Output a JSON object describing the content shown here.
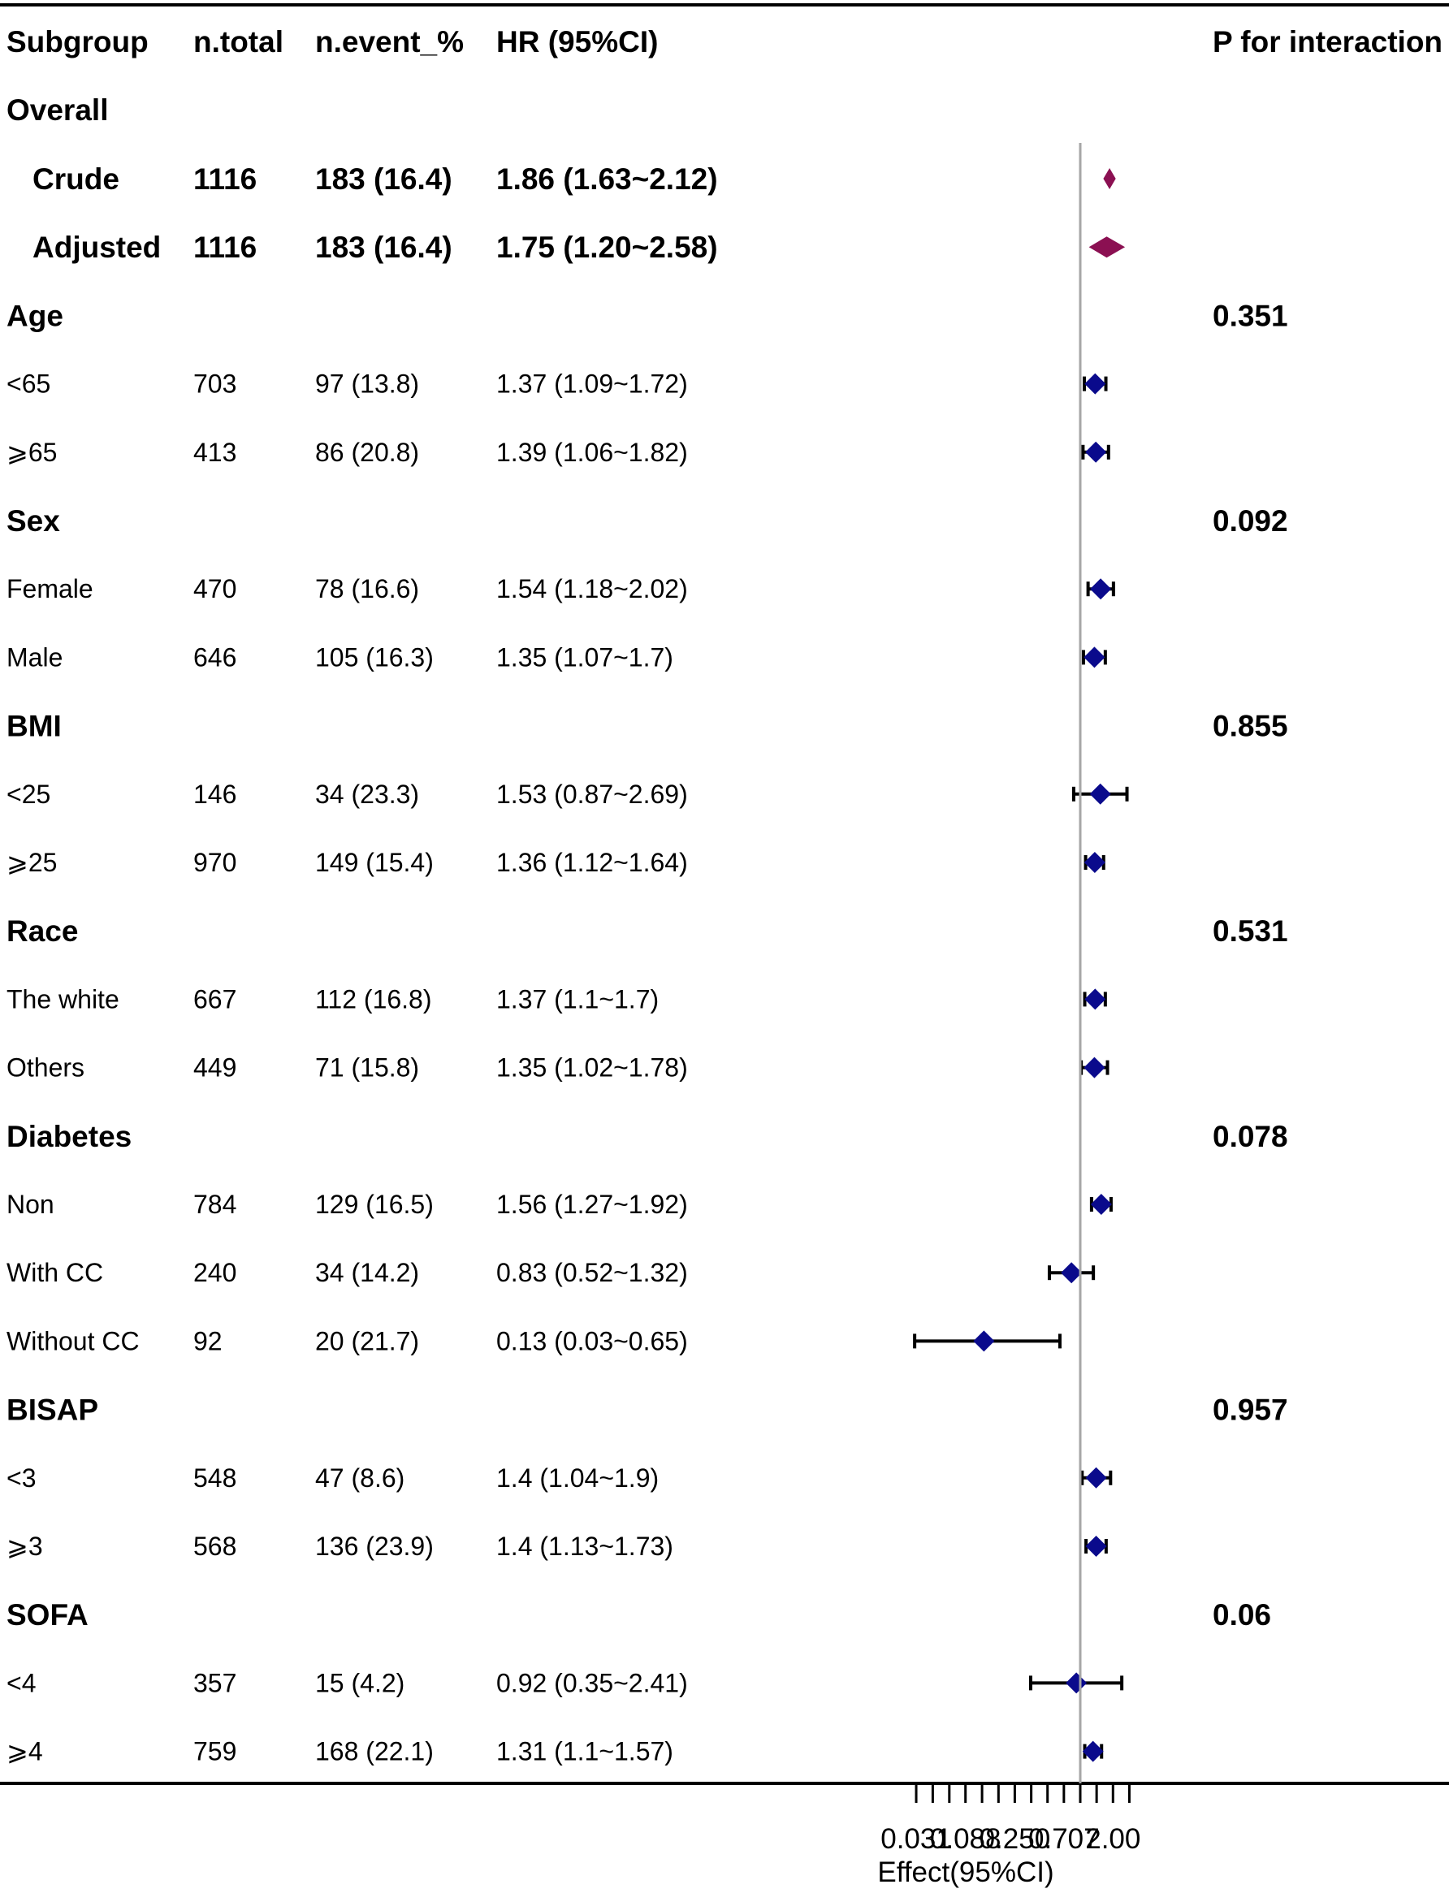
{
  "chart_data": {
    "type": "forest",
    "title": "",
    "xlabel": "Effect(95%CI)",
    "x_scale": "log2",
    "reference_value": 1,
    "xlim": [
      0.021,
      2.83
    ],
    "x_ticks": [
      0.031,
      0.088,
      0.25,
      0.707,
      2.0
    ],
    "x_tick_labels": [
      "0.031",
      "0.088",
      "0.250",
      "0.707",
      "2.00"
    ],
    "x_minor_ticks": [
      0.044,
      0.0625,
      0.125,
      0.177,
      0.354,
      0.5,
      1.0,
      1.414,
      2.828
    ],
    "columns": {
      "subgroup": "Subgroup",
      "n_total": "n.total",
      "n_event": "n.event_%",
      "hr": "HR (95%CI)",
      "p_interaction": "P for interaction"
    },
    "overall_label": "Overall",
    "overall": [
      {
        "label": "Crude",
        "n_total": "1116",
        "n_event": "183 (16.4)",
        "hr_text": "1.86 (1.63~2.12)",
        "hr": 1.86,
        "lower": 1.63,
        "upper": 2.12
      },
      {
        "label": "Adjusted",
        "n_total": "1116",
        "n_event": "183 (16.4)",
        "hr_text": "1.75 (1.20~2.58)",
        "hr": 1.75,
        "lower": 1.2,
        "upper": 2.58
      }
    ],
    "groups": [
      {
        "name": "Age",
        "p": "0.351",
        "rows": [
          {
            "label": "<65",
            "n_total": "703",
            "n_event": "97 (13.8)",
            "hr_text": "1.37 (1.09~1.72)",
            "hr": 1.37,
            "lower": 1.09,
            "upper": 1.72
          },
          {
            "label": "⩾65",
            "n_total": "413",
            "n_event": "86 (20.8)",
            "hr_text": "1.39 (1.06~1.82)",
            "hr": 1.39,
            "lower": 1.06,
            "upper": 1.82
          }
        ]
      },
      {
        "name": "Sex",
        "p": "0.092",
        "rows": [
          {
            "label": "Female",
            "n_total": "470",
            "n_event": "78 (16.6)",
            "hr_text": "1.54 (1.18~2.02)",
            "hr": 1.54,
            "lower": 1.18,
            "upper": 2.02
          },
          {
            "label": "Male",
            "n_total": "646",
            "n_event": "105 (16.3)",
            "hr_text": "1.35 (1.07~1.7)",
            "hr": 1.35,
            "lower": 1.07,
            "upper": 1.7
          }
        ]
      },
      {
        "name": "BMI",
        "p": "0.855",
        "rows": [
          {
            "label": "<25",
            "n_total": "146",
            "n_event": "34 (23.3)",
            "hr_text": "1.53 (0.87~2.69)",
            "hr": 1.53,
            "lower": 0.87,
            "upper": 2.69
          },
          {
            "label": "⩾25",
            "n_total": "970",
            "n_event": "149 (15.4)",
            "hr_text": "1.36 (1.12~1.64)",
            "hr": 1.36,
            "lower": 1.12,
            "upper": 1.64
          }
        ]
      },
      {
        "name": "Race",
        "p": "0.531",
        "rows": [
          {
            "label": "The white",
            "n_total": "667",
            "n_event": "112 (16.8)",
            "hr_text": "1.37 (1.1~1.7)",
            "hr": 1.37,
            "lower": 1.1,
            "upper": 1.7
          },
          {
            "label": "Others",
            "n_total": "449",
            "n_event": "71 (15.8)",
            "hr_text": "1.35 (1.02~1.78)",
            "hr": 1.35,
            "lower": 1.02,
            "upper": 1.78
          }
        ]
      },
      {
        "name": "Diabetes",
        "p": "0.078",
        "rows": [
          {
            "label": "Non",
            "n_total": "784",
            "n_event": "129 (16.5)",
            "hr_text": "1.56 (1.27~1.92)",
            "hr": 1.56,
            "lower": 1.27,
            "upper": 1.92
          },
          {
            "label": "With CC",
            "n_total": "240",
            "n_event": "34 (14.2)",
            "hr_text": "0.83 (0.52~1.32)",
            "hr": 0.83,
            "lower": 0.52,
            "upper": 1.32
          },
          {
            "label": "Without CC",
            "n_total": "92",
            "n_event": "20 (21.7)",
            "hr_text": "0.13 (0.03~0.65)",
            "hr": 0.13,
            "lower": 0.03,
            "upper": 0.65
          }
        ]
      },
      {
        "name": "BISAP",
        "p": "0.957",
        "rows": [
          {
            "label": "<3",
            "n_total": "548",
            "n_event": "47 (8.6)",
            "hr_text": "1.4 (1.04~1.9)",
            "hr": 1.4,
            "lower": 1.04,
            "upper": 1.9
          },
          {
            "label": "⩾3",
            "n_total": "568",
            "n_event": "136 (23.9)",
            "hr_text": "1.4 (1.13~1.73)",
            "hr": 1.4,
            "lower": 1.13,
            "upper": 1.73
          }
        ]
      },
      {
        "name": "SOFA",
        "p": "0.06",
        "rows": [
          {
            "label": "<4",
            "n_total": "357",
            "n_event": "15 (4.2)",
            "hr_text": "0.92 (0.35~2.41)",
            "hr": 0.92,
            "lower": 0.35,
            "upper": 2.41
          },
          {
            "label": "⩾4",
            "n_total": "759",
            "n_event": "168 (22.1)",
            "hr_text": "1.31 (1.1~1.57)",
            "hr": 1.31,
            "lower": 1.1,
            "upper": 1.57
          }
        ]
      }
    ],
    "colors": {
      "overall_diamond": "#8B1052",
      "subgroup_marker": "#0A0A8C",
      "ci_line": "#000000",
      "reference_line": "#A6A6A6",
      "rule": "#000000"
    }
  }
}
